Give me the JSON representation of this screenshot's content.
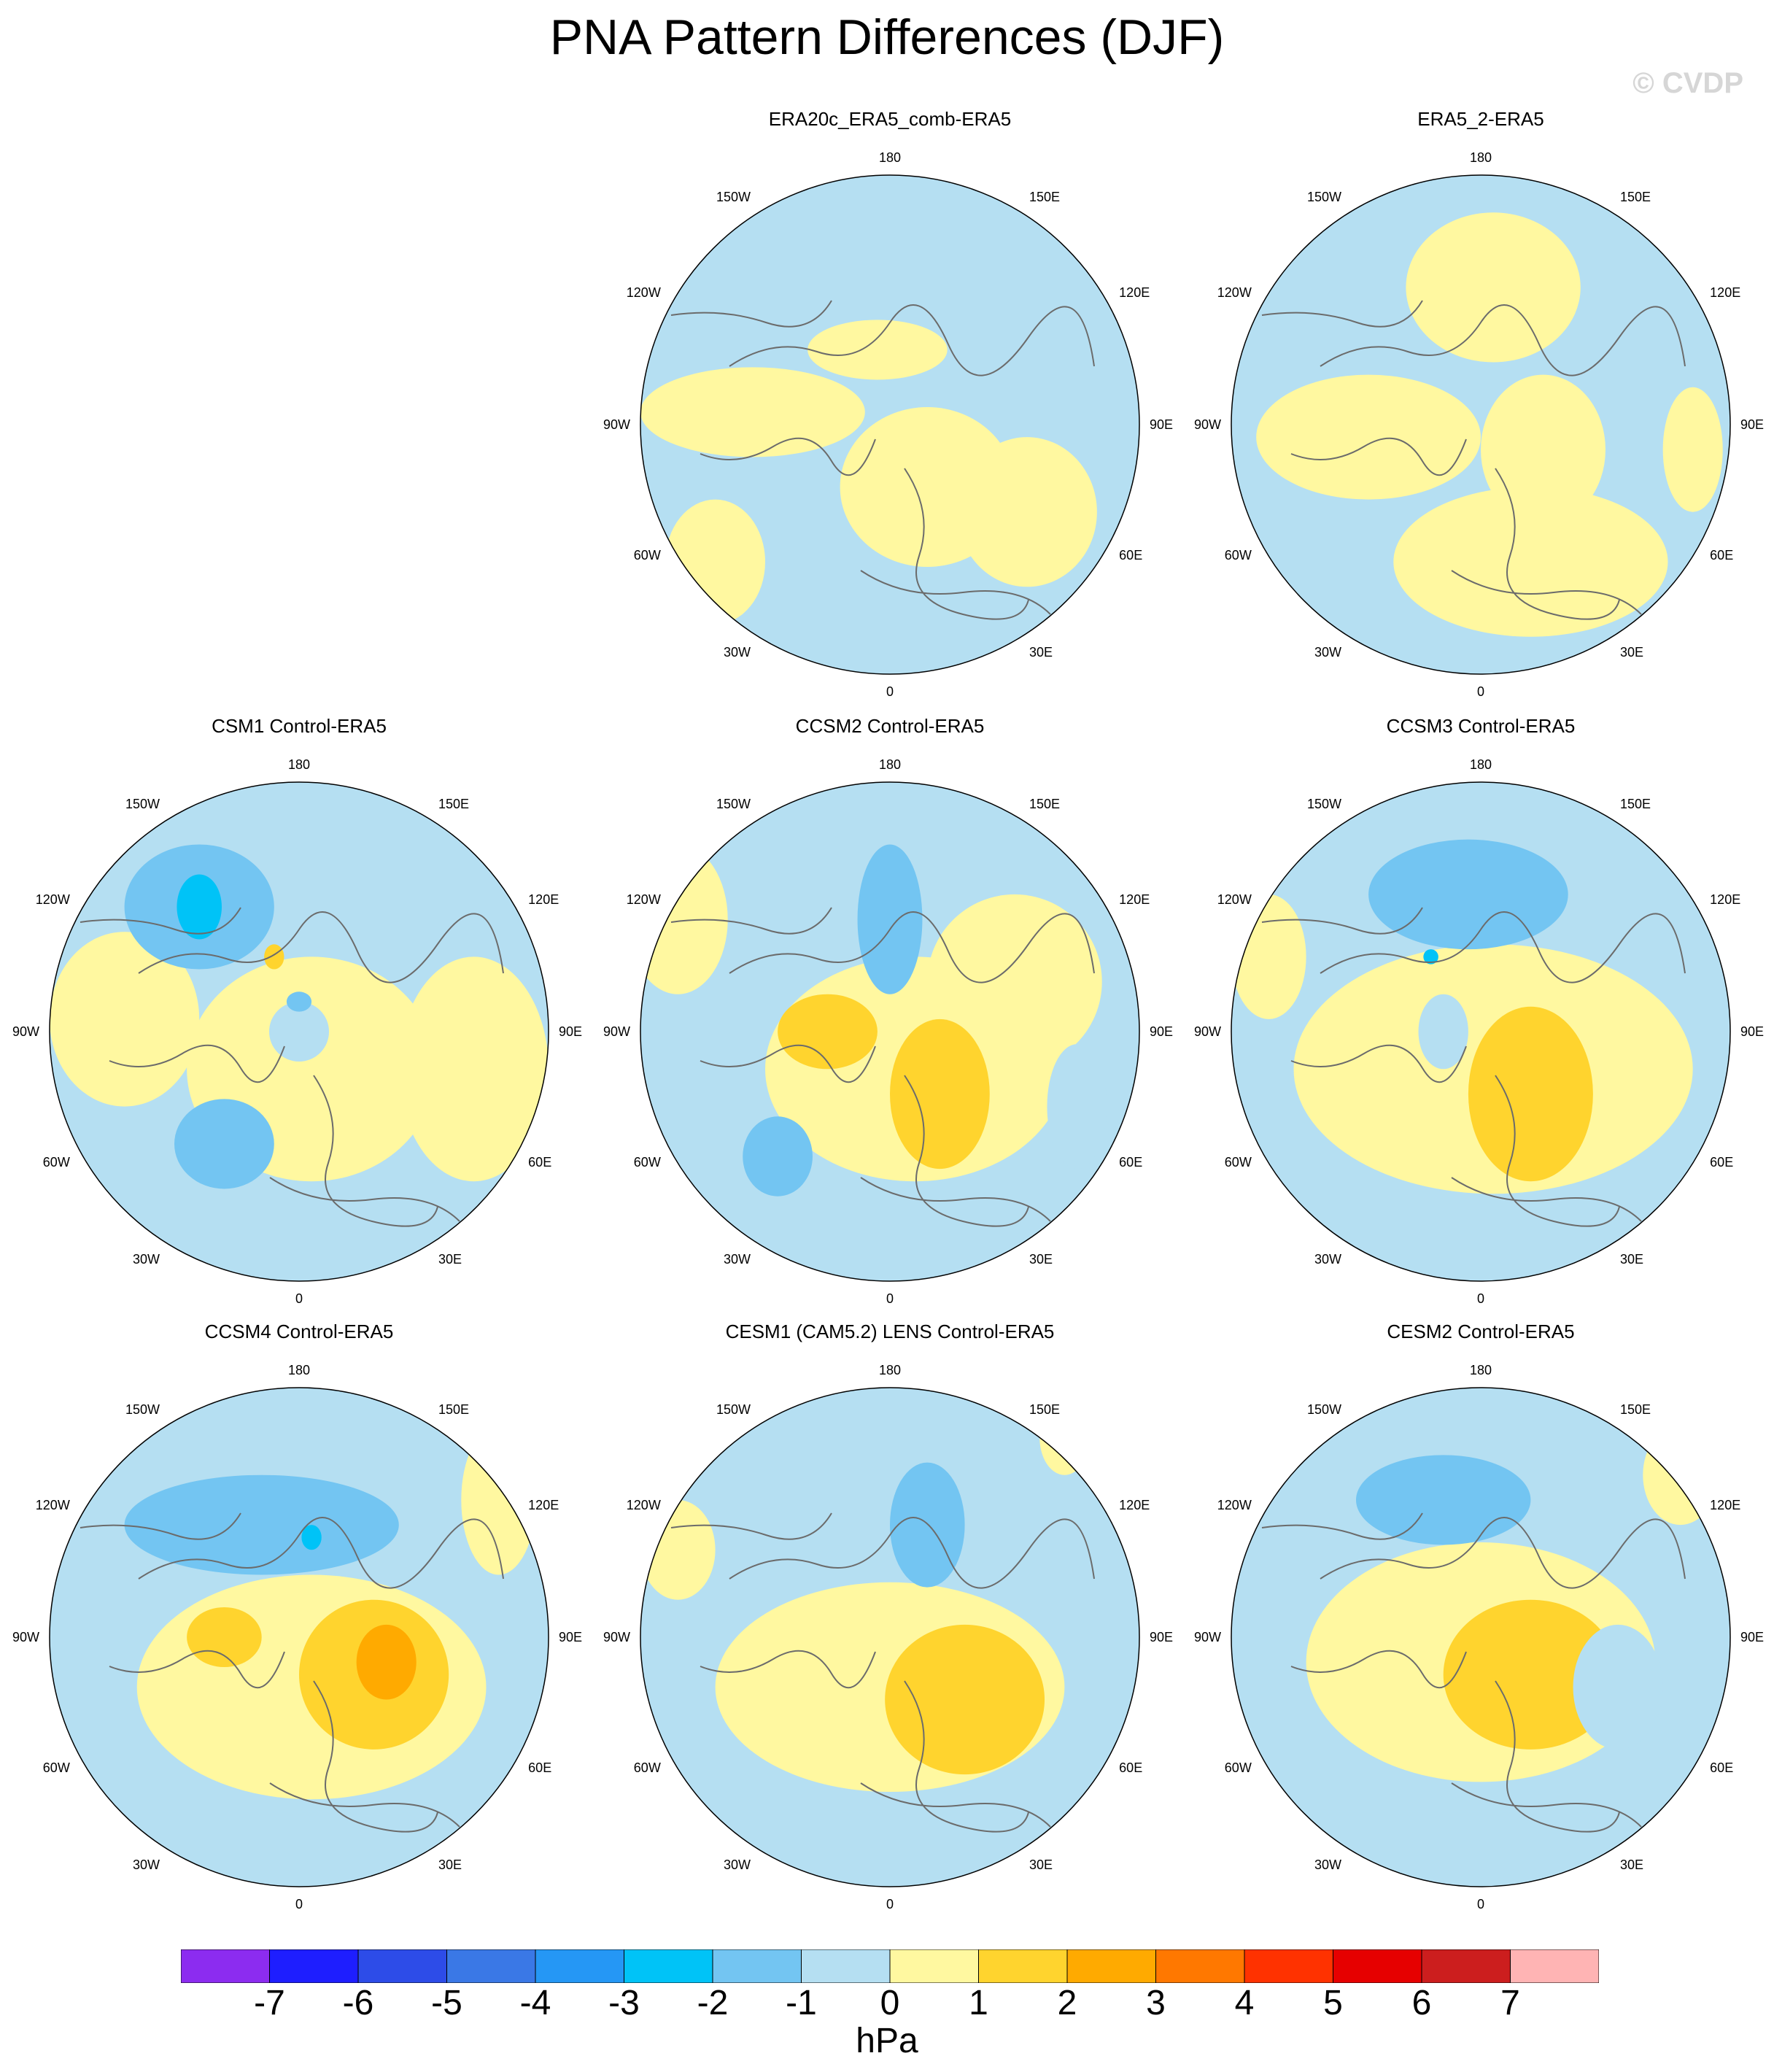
{
  "title": "PNA Pattern Differences (DJF)",
  "watermark": "© CVDP",
  "colors": {
    "land_outline": "#6b6b6b",
    "background": "#ffffff"
  },
  "longitude_labels": {
    "top": "180",
    "bottom": "0",
    "upper_left": "150W",
    "upper_right": "150E",
    "mid_upper_left": "120W",
    "mid_upper_right": "120E",
    "left": "90W",
    "right": "90E",
    "mid_lower_left": "60W",
    "mid_lower_right": "60E",
    "lower_left": "30W",
    "lower_right": "30E"
  },
  "panels": [
    {
      "title": "ERA20c_ERA5_comb-ERA5",
      "base": "neg1",
      "blobs": [
        {
          "cls": "pos1",
          "dx": -0.55,
          "dy": -0.05,
          "rx": 0.45,
          "ry": 0.18
        },
        {
          "cls": "pos1",
          "dx": 0.15,
          "dy": 0.25,
          "rx": 0.35,
          "ry": 0.32
        },
        {
          "cls": "pos1",
          "dx": 0.55,
          "dy": 0.35,
          "rx": 0.28,
          "ry": 0.3
        },
        {
          "cls": "pos1",
          "dx": -0.7,
          "dy": 0.55,
          "rx": 0.2,
          "ry": 0.25
        },
        {
          "cls": "pos1",
          "dx": -0.05,
          "dy": -0.3,
          "rx": 0.28,
          "ry": 0.12
        }
      ]
    },
    {
      "title": "ERA5_2-ERA5",
      "base": "neg1",
      "blobs": [
        {
          "cls": "pos1",
          "dx": 0.05,
          "dy": -0.55,
          "rx": 0.35,
          "ry": 0.3
        },
        {
          "cls": "pos1",
          "dx": -0.45,
          "dy": 0.05,
          "rx": 0.45,
          "ry": 0.25
        },
        {
          "cls": "pos1",
          "dx": 0.2,
          "dy": 0.55,
          "rx": 0.55,
          "ry": 0.3
        },
        {
          "cls": "pos1",
          "dx": 0.25,
          "dy": 0.1,
          "rx": 0.25,
          "ry": 0.3
        },
        {
          "cls": "pos1",
          "dx": 0.85,
          "dy": 0.1,
          "rx": 0.12,
          "ry": 0.25
        }
      ]
    },
    {
      "title": "CSM1 Control-ERA5",
      "base": "neg1",
      "blobs": [
        {
          "cls": "pos1",
          "dx": 0.05,
          "dy": 0.15,
          "rx": 0.5,
          "ry": 0.45
        },
        {
          "cls": "pos1",
          "dx": -0.7,
          "dy": -0.05,
          "rx": 0.3,
          "ry": 0.35
        },
        {
          "cls": "pos1",
          "dx": 0.7,
          "dy": 0.15,
          "rx": 0.3,
          "ry": 0.45
        },
        {
          "cls": "neg2",
          "dx": -0.4,
          "dy": -0.5,
          "rx": 0.3,
          "ry": 0.25
        },
        {
          "cls": "neg3",
          "dx": -0.4,
          "dy": -0.5,
          "rx": 0.09,
          "ry": 0.13
        },
        {
          "cls": "neg2",
          "dx": -0.3,
          "dy": 0.45,
          "rx": 0.2,
          "ry": 0.18
        },
        {
          "cls": "neg1",
          "dx": 0.0,
          "dy": 0.0,
          "rx": 0.12,
          "ry": 0.12
        },
        {
          "cls": "neg2",
          "dx": 0.0,
          "dy": -0.12,
          "rx": 0.05,
          "ry": 0.04
        },
        {
          "cls": "pos2",
          "dx": -0.1,
          "dy": -0.3,
          "rx": 0.04,
          "ry": 0.05
        }
      ]
    },
    {
      "title": "CCSM2 Control-ERA5",
      "base": "neg1",
      "blobs": [
        {
          "cls": "pos1",
          "dx": -0.85,
          "dy": -0.45,
          "rx": 0.2,
          "ry": 0.3
        },
        {
          "cls": "pos1",
          "dx": 0.1,
          "dy": 0.15,
          "rx": 0.6,
          "ry": 0.45
        },
        {
          "cls": "pos1",
          "dx": 0.5,
          "dy": -0.2,
          "rx": 0.35,
          "ry": 0.35
        },
        {
          "cls": "pos2",
          "dx": -0.25,
          "dy": 0.0,
          "rx": 0.2,
          "ry": 0.15
        },
        {
          "cls": "pos2",
          "dx": 0.2,
          "dy": 0.25,
          "rx": 0.2,
          "ry": 0.3
        },
        {
          "cls": "neg2",
          "dx": 0.0,
          "dy": -0.45,
          "rx": 0.13,
          "ry": 0.3
        },
        {
          "cls": "neg2",
          "dx": -0.45,
          "dy": 0.5,
          "rx": 0.14,
          "ry": 0.16
        },
        {
          "cls": "neg1",
          "dx": 0.75,
          "dy": 0.3,
          "rx": 0.12,
          "ry": 0.25
        }
      ]
    },
    {
      "title": "CCSM3 Control-ERA5",
      "base": "neg1",
      "blobs": [
        {
          "cls": "pos1",
          "dx": 0.05,
          "dy": 0.15,
          "rx": 0.8,
          "ry": 0.5
        },
        {
          "cls": "pos2",
          "dx": 0.2,
          "dy": 0.25,
          "rx": 0.25,
          "ry": 0.35
        },
        {
          "cls": "neg2",
          "dx": -0.05,
          "dy": -0.55,
          "rx": 0.4,
          "ry": 0.22
        },
        {
          "cls": "neg3",
          "dx": -0.2,
          "dy": -0.3,
          "rx": 0.03,
          "ry": 0.03
        },
        {
          "cls": "neg1",
          "dx": -0.15,
          "dy": 0.0,
          "rx": 0.1,
          "ry": 0.15
        },
        {
          "cls": "pos1",
          "dx": -0.85,
          "dy": -0.3,
          "rx": 0.15,
          "ry": 0.25
        }
      ]
    },
    {
      "title": "CCSM4 Control-ERA5",
      "base": "neg1",
      "blobs": [
        {
          "cls": "pos1",
          "dx": 0.05,
          "dy": 0.2,
          "rx": 0.7,
          "ry": 0.45
        },
        {
          "cls": "pos1",
          "dx": 0.8,
          "dy": -0.55,
          "rx": 0.15,
          "ry": 0.3
        },
        {
          "cls": "neg2",
          "dx": -0.15,
          "dy": -0.45,
          "rx": 0.55,
          "ry": 0.2
        },
        {
          "cls": "neg3",
          "dx": 0.05,
          "dy": -0.4,
          "rx": 0.04,
          "ry": 0.05
        },
        {
          "cls": "pos2",
          "dx": 0.3,
          "dy": 0.15,
          "rx": 0.3,
          "ry": 0.3
        },
        {
          "cls": "pos3",
          "dx": 0.35,
          "dy": 0.1,
          "rx": 0.12,
          "ry": 0.15
        },
        {
          "cls": "pos2",
          "dx": -0.3,
          "dy": 0.0,
          "rx": 0.15,
          "ry": 0.12
        }
      ]
    },
    {
      "title": "CESM1 (CAM5.2) LENS Control-ERA5",
      "base": "neg1",
      "blobs": [
        {
          "cls": "pos1",
          "dx": 0.0,
          "dy": 0.2,
          "rx": 0.7,
          "ry": 0.42
        },
        {
          "cls": "pos2",
          "dx": 0.3,
          "dy": 0.25,
          "rx": 0.32,
          "ry": 0.3
        },
        {
          "cls": "neg2",
          "dx": 0.15,
          "dy": -0.45,
          "rx": 0.15,
          "ry": 0.25
        },
        {
          "cls": "pos1",
          "dx": -0.85,
          "dy": -0.35,
          "rx": 0.15,
          "ry": 0.2
        },
        {
          "cls": "pos1",
          "dx": 0.7,
          "dy": -0.8,
          "rx": 0.1,
          "ry": 0.15
        }
      ]
    },
    {
      "title": "CESM2 Control-ERA5",
      "base": "neg1",
      "blobs": [
        {
          "cls": "pos1",
          "dx": 0.0,
          "dy": 0.1,
          "rx": 0.7,
          "ry": 0.48
        },
        {
          "cls": "pos2",
          "dx": 0.2,
          "dy": 0.15,
          "rx": 0.35,
          "ry": 0.3
        },
        {
          "cls": "neg2",
          "dx": -0.15,
          "dy": -0.55,
          "rx": 0.35,
          "ry": 0.18
        },
        {
          "cls": "neg1",
          "dx": 0.55,
          "dy": 0.2,
          "rx": 0.18,
          "ry": 0.25
        },
        {
          "cls": "pos1",
          "dx": 0.8,
          "dy": -0.65,
          "rx": 0.15,
          "ry": 0.2
        }
      ]
    }
  ],
  "colorbar": {
    "colors": [
      "#8c2cf0",
      "#1e1eff",
      "#2d4ce8",
      "#3a78e6",
      "#2597f5",
      "#00c3f7",
      "#73c5f2",
      "#b5dff2",
      "#fff8a0",
      "#ffd42e",
      "#ffaa00",
      "#ff7800",
      "#ff3200",
      "#e60000",
      "#cc1e1e",
      "#ffb4b4"
    ],
    "ticks": [
      "-7",
      "-6",
      "-5",
      "-4",
      "-3",
      "-2",
      "-1",
      "0",
      "1",
      "2",
      "3",
      "4",
      "5",
      "6",
      "7"
    ],
    "units": "hPa"
  },
  "level_colors": {
    "neg3": "#00c3f7",
    "neg2": "#73c5f2",
    "neg1": "#b5dff2",
    "pos1": "#fff8a0",
    "pos2": "#ffd42e",
    "pos3": "#ffaa00"
  }
}
